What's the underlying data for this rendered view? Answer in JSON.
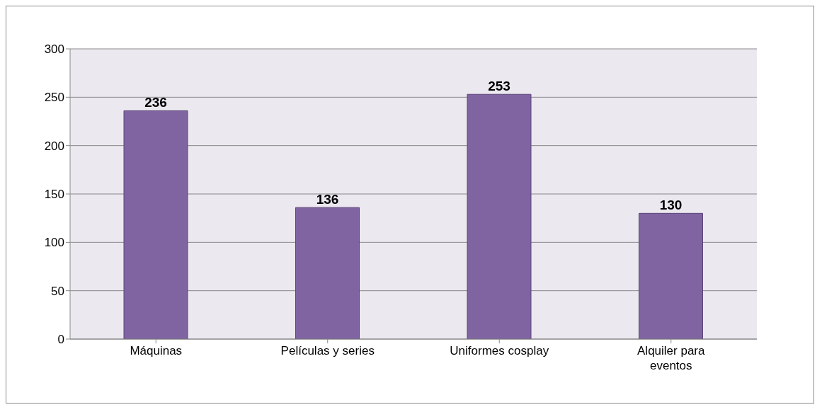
{
  "chart_data": {
    "type": "bar",
    "categories": [
      "Máquinas",
      "Películas y series",
      "Uniformes cosplay",
      "Alquiler para eventos"
    ],
    "values": [
      236,
      136,
      253,
      130
    ],
    "color": "#8064a2",
    "ylim": [
      0,
      300
    ],
    "yticks": [
      0,
      50,
      100,
      150,
      200,
      250,
      300
    ],
    "grid": "y",
    "data_labels": true
  }
}
